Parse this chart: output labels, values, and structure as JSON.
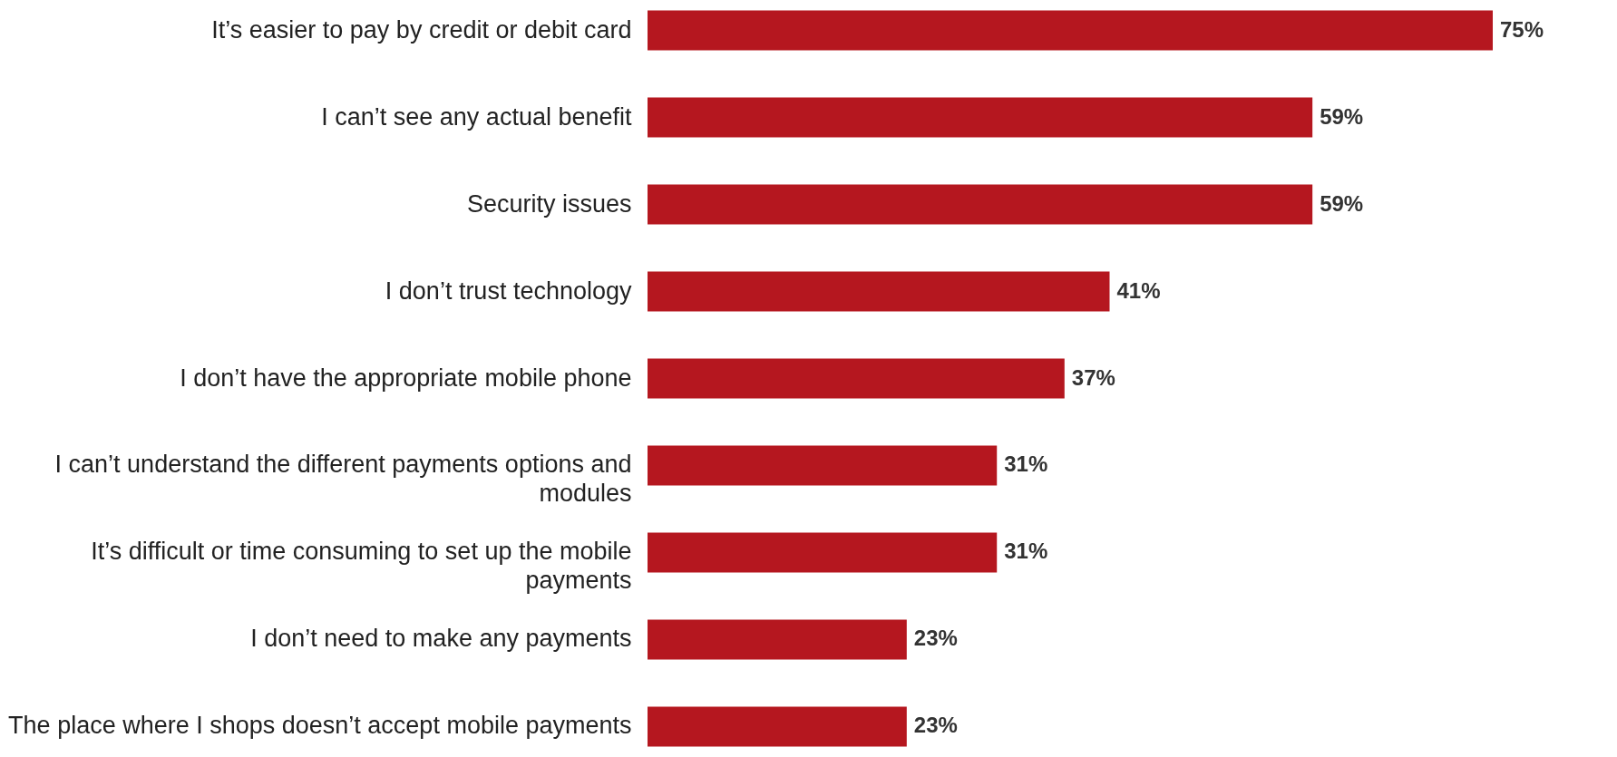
{
  "chart_data": {
    "type": "bar",
    "orientation": "horizontal",
    "categories": [
      "It’s easier to pay by credit or debit card",
      "I can’t see any actual benefit",
      "Security issues",
      "I don’t trust technology",
      "I don’t have the appropriate mobile phone",
      "I can’t understand the different payments options and modules",
      "It’s difficult or time consuming to set up the mobile payments",
      "I don’t need to make any payments",
      "The place where I shops doesn’t accept mobile payments"
    ],
    "values": [
      75,
      59,
      59,
      41,
      37,
      31,
      31,
      23,
      23
    ],
    "value_labels": [
      "75%",
      "59%",
      "59%",
      "41%",
      "37%",
      "31%",
      "31%",
      "23%",
      "23%"
    ],
    "color": "#b5171f"
  }
}
